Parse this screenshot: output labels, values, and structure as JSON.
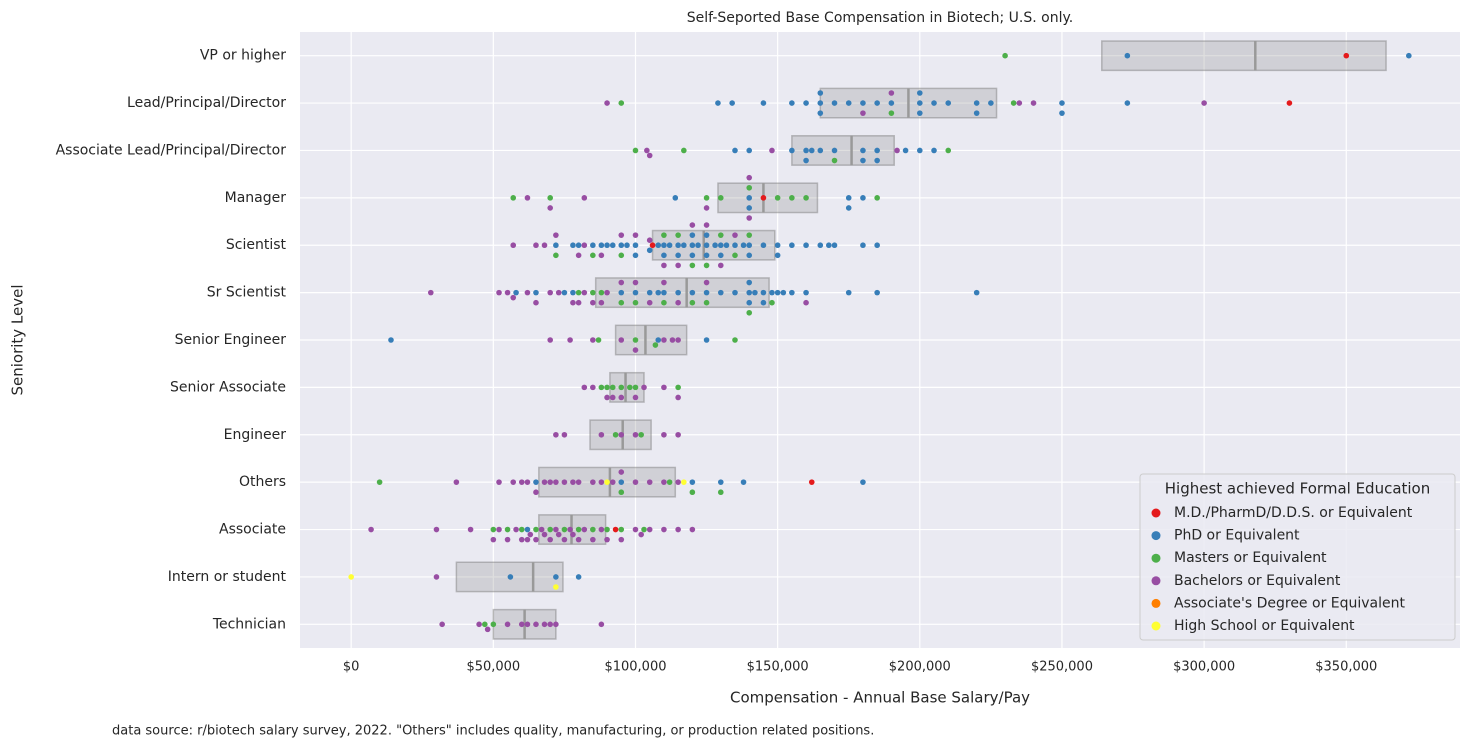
{
  "chart_data": {
    "type": "swarm",
    "title": "Self-Seported Base Compensation in Biotech; U.S. only.",
    "x_label": "Compensation - Annual Base Salary/Pay",
    "y_label": "Seniority Level",
    "footnote": "data source: r/biotech salary survey, 2022. \"Others\" includes quality, manufacturing, or production related positions.",
    "legend_title": "Highest achieved Formal Education",
    "legend_position": "lower right",
    "grid": true,
    "categories": [
      "VP or higher",
      "Lead/Principal/Director",
      "Associate Lead/Principal/Director",
      "Manager",
      "Scientist",
      "Sr Scientist",
      "Senior Engineer",
      "Senior Associate",
      "Engineer",
      "Others",
      "Associate",
      "Intern or student",
      "Technician"
    ],
    "xlim": [
      -18000,
      390000
    ],
    "xticks": [
      {
        "value": 0,
        "label": "$0"
      },
      {
        "value": 50000,
        "label": "$50,000"
      },
      {
        "value": 100000,
        "label": "$100,000"
      },
      {
        "value": 150000,
        "label": "$150,000"
      },
      {
        "value": 200000,
        "label": "$200,000"
      },
      {
        "value": 250000,
        "label": "$250,000"
      },
      {
        "value": 300000,
        "label": "$300,000"
      },
      {
        "value": 350000,
        "label": "$350,000"
      }
    ],
    "boxes": [
      {
        "q1": 264000,
        "median": 318000,
        "q3": 364000
      },
      {
        "q1": 165000,
        "median": 196000,
        "q3": 227000
      },
      {
        "q1": 155000,
        "median": 176000,
        "q3": 191000
      },
      {
        "q1": 129000,
        "median": 145000,
        "q3": 164000
      },
      {
        "q1": 106000,
        "median": 124000,
        "q3": 149000
      },
      {
        "q1": 86000,
        "median": 118000,
        "q3": 147000
      },
      {
        "q1": 93000,
        "median": 103500,
        "q3": 118000
      },
      {
        "q1": 91000,
        "median": 96500,
        "q3": 103000
      },
      {
        "q1": 84000,
        "median": 95500,
        "q3": 105500
      },
      {
        "q1": 66000,
        "median": 91000,
        "q3": 114000
      },
      {
        "q1": 66000,
        "median": 77500,
        "q3": 89500
      },
      {
        "q1": 37000,
        "median": 64000,
        "q3": 74500
      },
      {
        "q1": 50000,
        "median": 61000,
        "q3": 72000
      }
    ],
    "series": [
      {
        "name": "M.D./PharmD/D.D.S. or Equivalent",
        "color": "#e41a1c",
        "values": [
          [
            350000
          ],
          [
            330000
          ],
          [],
          [
            145000
          ],
          [
            106000
          ],
          [],
          [],
          [],
          [],
          [
            162000
          ],
          [
            93000
          ],
          [],
          []
        ]
      },
      {
        "name": "PhD or Equivalent",
        "color": "#377eb8",
        "values": [
          [
            273000,
            372000
          ],
          [
            129000,
            134000,
            145000,
            155000,
            160000,
            165000,
            165000,
            165000,
            170000,
            175000,
            180000,
            185000,
            190000,
            200000,
            200000,
            200000,
            205000,
            210000,
            220000,
            220000,
            225000,
            250000,
            250000,
            273000
          ],
          [
            135000,
            140000,
            155000,
            160000,
            160000,
            162000,
            165000,
            170000,
            180000,
            180000,
            185000,
            185000,
            195000,
            200000,
            205000
          ],
          [
            114000,
            140000,
            140000,
            175000,
            175000,
            180000
          ],
          [
            72000,
            78000,
            80000,
            85000,
            88000,
            90000,
            92000,
            95000,
            97000,
            100000,
            100000,
            105000,
            108000,
            110000,
            110000,
            112000,
            115000,
            115000,
            117000,
            120000,
            120000,
            120000,
            122000,
            125000,
            125000,
            125000,
            128000,
            130000,
            130000,
            132000,
            135000,
            138000,
            140000,
            140000,
            145000,
            150000,
            150000,
            155000,
            160000,
            165000,
            168000,
            170000,
            180000,
            185000
          ],
          [
            58000,
            65000,
            75000,
            78000,
            95000,
            100000,
            105000,
            108000,
            110000,
            115000,
            120000,
            125000,
            130000,
            135000,
            140000,
            140000,
            140000,
            142000,
            145000,
            145000,
            148000,
            150000,
            152000,
            155000,
            160000,
            175000,
            185000,
            220000
          ],
          [
            14000,
            108000,
            125000
          ],
          [],
          [],
          [
            65000,
            95000,
            120000,
            130000,
            138000,
            180000
          ],
          [
            62000
          ],
          [
            56000,
            72000,
            80000
          ],
          []
        ]
      },
      {
        "name": "Masters or Equivalent",
        "color": "#4daf4a",
        "values": [
          [
            230000
          ],
          [
            95000,
            190000,
            233000
          ],
          [
            100000,
            117000,
            170000,
            210000
          ],
          [
            57000,
            70000,
            125000,
            130000,
            140000,
            150000,
            155000,
            160000,
            185000
          ],
          [
            72000,
            85000,
            95000,
            110000,
            115000,
            120000,
            125000,
            130000,
            135000,
            140000
          ],
          [
            80000,
            85000,
            88000,
            95000,
            100000,
            110000,
            120000,
            125000,
            140000,
            148000
          ],
          [
            87000,
            100000,
            107000,
            135000
          ],
          [
            88000,
            90000,
            92000,
            95000,
            98000,
            100000,
            115000
          ],
          [
            93000,
            102000
          ],
          [
            10000,
            95000,
            112000,
            120000,
            130000
          ],
          [
            50000,
            55000,
            60000,
            65000,
            70000,
            75000,
            80000,
            85000,
            90000,
            95000,
            103000
          ],
          [],
          [
            47000,
            50000
          ]
        ]
      },
      {
        "name": "Bachelors or Equivalent",
        "color": "#984ea3",
        "values": [
          [],
          [
            90000,
            180000,
            190000,
            235000,
            240000,
            300000
          ],
          [
            104000,
            105000,
            148000,
            192000
          ],
          [
            62000,
            70000,
            82000,
            125000,
            140000,
            140000
          ],
          [
            57000,
            65000,
            68000,
            72000,
            80000,
            82000,
            88000,
            95000,
            100000,
            105000,
            110000,
            115000,
            120000,
            125000,
            130000,
            135000
          ],
          [
            28000,
            52000,
            55000,
            57000,
            62000,
            65000,
            70000,
            73000,
            78000,
            80000,
            82000,
            85000,
            88000,
            90000,
            95000,
            100000,
            105000,
            110000,
            115000,
            125000,
            160000
          ],
          [
            70000,
            77000,
            85000,
            95000,
            100000,
            110000,
            113000,
            115000
          ],
          [
            82000,
            85000,
            90000,
            92000,
            95000,
            100000,
            103000,
            110000,
            115000
          ],
          [
            72000,
            75000,
            88000,
            95000,
            100000,
            110000,
            115000
          ],
          [
            37000,
            52000,
            57000,
            60000,
            62000,
            65000,
            68000,
            70000,
            72000,
            75000,
            78000,
            80000,
            85000,
            88000,
            92000,
            95000,
            100000,
            105000,
            110000,
            115000
          ],
          [
            7000,
            30000,
            42000,
            50000,
            52000,
            55000,
            58000,
            60000,
            62000,
            63000,
            65000,
            67000,
            68000,
            70000,
            72000,
            73000,
            75000,
            77000,
            78000,
            80000,
            82000,
            85000,
            88000,
            90000,
            95000,
            100000,
            102000,
            105000,
            110000,
            115000,
            120000
          ],
          [
            30000
          ],
          [
            32000,
            45000,
            48000,
            55000,
            60000,
            62000,
            65000,
            68000,
            70000,
            72000,
            88000
          ]
        ]
      },
      {
        "name": "Associate's Degree or Equivalent",
        "color": "#ff7f00",
        "values": [
          [],
          [],
          [],
          [],
          [],
          [],
          [],
          [],
          [],
          [],
          [],
          [],
          []
        ]
      },
      {
        "name": "High School or Equivalent",
        "color": "#ffff33",
        "values": [
          [],
          [],
          [],
          [],
          [],
          [],
          [],
          [],
          [],
          [
            90000,
            117000
          ],
          [],
          [
            0,
            72000
          ],
          []
        ]
      }
    ]
  }
}
